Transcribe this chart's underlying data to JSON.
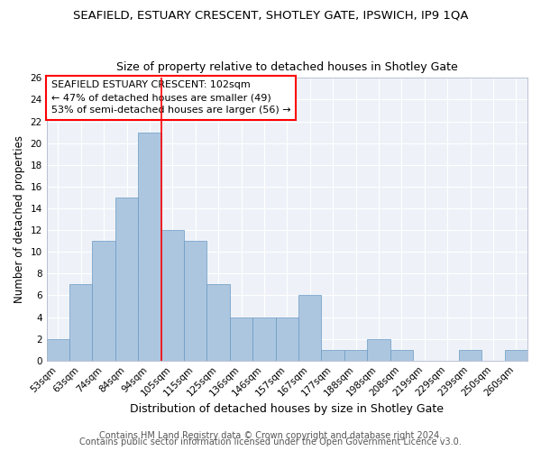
{
  "title": "SEAFIELD, ESTUARY CRESCENT, SHOTLEY GATE, IPSWICH, IP9 1QA",
  "subtitle": "Size of property relative to detached houses in Shotley Gate",
  "xlabel": "Distribution of detached houses by size in Shotley Gate",
  "ylabel": "Number of detached properties",
  "categories": [
    "53sqm",
    "63sqm",
    "74sqm",
    "84sqm",
    "94sqm",
    "105sqm",
    "115sqm",
    "125sqm",
    "136sqm",
    "146sqm",
    "157sqm",
    "167sqm",
    "177sqm",
    "188sqm",
    "198sqm",
    "208sqm",
    "219sqm",
    "229sqm",
    "239sqm",
    "250sqm",
    "260sqm"
  ],
  "values": [
    2,
    7,
    11,
    15,
    21,
    12,
    11,
    7,
    4,
    4,
    4,
    6,
    1,
    1,
    2,
    1,
    0,
    0,
    1,
    0,
    1
  ],
  "bar_color": "#adc6e0",
  "bar_edge_color": "#6899c4",
  "vline_color": "red",
  "annotation_box_color": "white",
  "annotation_box_edge": "red",
  "annotation_line1": "SEAFIELD ESTUARY CRESCENT: 102sqm",
  "annotation_line2": "← 47% of detached houses are smaller (49)",
  "annotation_line3": "53% of semi-detached houses are larger (56) →",
  "ylim": [
    0,
    26
  ],
  "yticks": [
    0,
    2,
    4,
    6,
    8,
    10,
    12,
    14,
    16,
    18,
    20,
    22,
    24,
    26
  ],
  "footer1": "Contains HM Land Registry data © Crown copyright and database right 2024.",
  "footer2": "Contains public sector information licensed under the Open Government Licence v3.0.",
  "bg_color": "#eef2f8",
  "grid_color": "white",
  "title_fontsize": 9.5,
  "subtitle_fontsize": 9,
  "xlabel_fontsize": 9,
  "ylabel_fontsize": 8.5,
  "tick_fontsize": 7.5,
  "annotation_fontsize": 8,
  "footer_fontsize": 7
}
